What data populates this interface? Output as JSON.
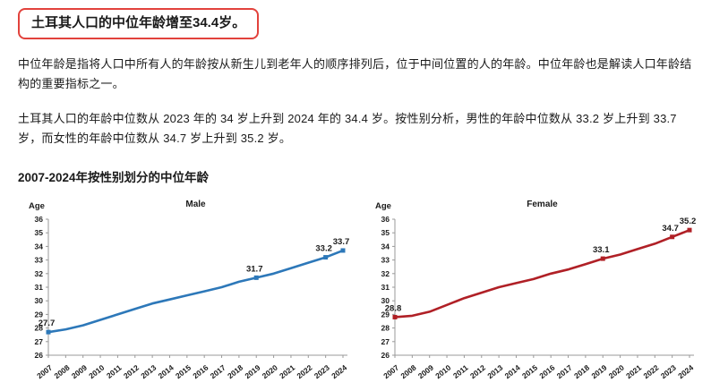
{
  "header": {
    "title": "土耳其人口的中位年龄增至34.4岁。",
    "box_border_color": "#e2423c"
  },
  "paragraphs": [
    "中位年龄是指将人口中所有人的年龄按从新生儿到老年人的顺序排列后，位于中间位置的人的年龄。中位年龄也是解读人口年龄结构的重要指标之一。",
    "土耳其人口的年龄中位数从 2023 年的 34 岁上升到 2024 年的 34.4 岁。按性别分析，男性的年龄中位数从 33.2 岁上升到 33.7 岁，而女性的年龄中位数从 34.7 岁上升到 35.2 岁。"
  ],
  "section_heading": "2007-2024年按性别划分的中位年龄",
  "chart_data": [
    {
      "type": "line",
      "title": "Male",
      "ylabel": "Age",
      "color": "#2d78b9",
      "ylim": [
        26,
        36
      ],
      "ytick_step": 1,
      "grid": false,
      "x": [
        2007,
        2008,
        2009,
        2010,
        2011,
        2012,
        2013,
        2014,
        2015,
        2016,
        2017,
        2018,
        2019,
        2020,
        2021,
        2022,
        2023,
        2024
      ],
      "values": [
        27.7,
        27.9,
        28.2,
        28.6,
        29.0,
        29.4,
        29.8,
        30.1,
        30.4,
        30.7,
        31.0,
        31.4,
        31.7,
        32.0,
        32.4,
        32.8,
        33.2,
        33.7
      ],
      "point_labels": [
        {
          "year": 2007,
          "value": "27.7"
        },
        {
          "year": 2019,
          "value": "31.7"
        },
        {
          "year": 2023,
          "value": "33.2"
        },
        {
          "year": 2024,
          "value": "33.7"
        }
      ]
    },
    {
      "type": "line",
      "title": "Female",
      "ylabel": "Age",
      "color": "#b02026",
      "ylim": [
        26,
        36
      ],
      "ytick_step": 1,
      "grid": false,
      "x": [
        2007,
        2008,
        2009,
        2010,
        2011,
        2012,
        2013,
        2014,
        2015,
        2016,
        2017,
        2018,
        2019,
        2020,
        2021,
        2022,
        2023,
        2024
      ],
      "values": [
        28.8,
        28.9,
        29.2,
        29.7,
        30.2,
        30.6,
        31.0,
        31.3,
        31.6,
        32.0,
        32.3,
        32.7,
        33.1,
        33.4,
        33.8,
        34.2,
        34.7,
        35.2
      ],
      "point_labels": [
        {
          "year": 2007,
          "value": "28.8"
        },
        {
          "year": 2019,
          "value": "33.1"
        },
        {
          "year": 2023,
          "value": "34.7"
        },
        {
          "year": 2024,
          "value": "35.2"
        }
      ]
    }
  ]
}
